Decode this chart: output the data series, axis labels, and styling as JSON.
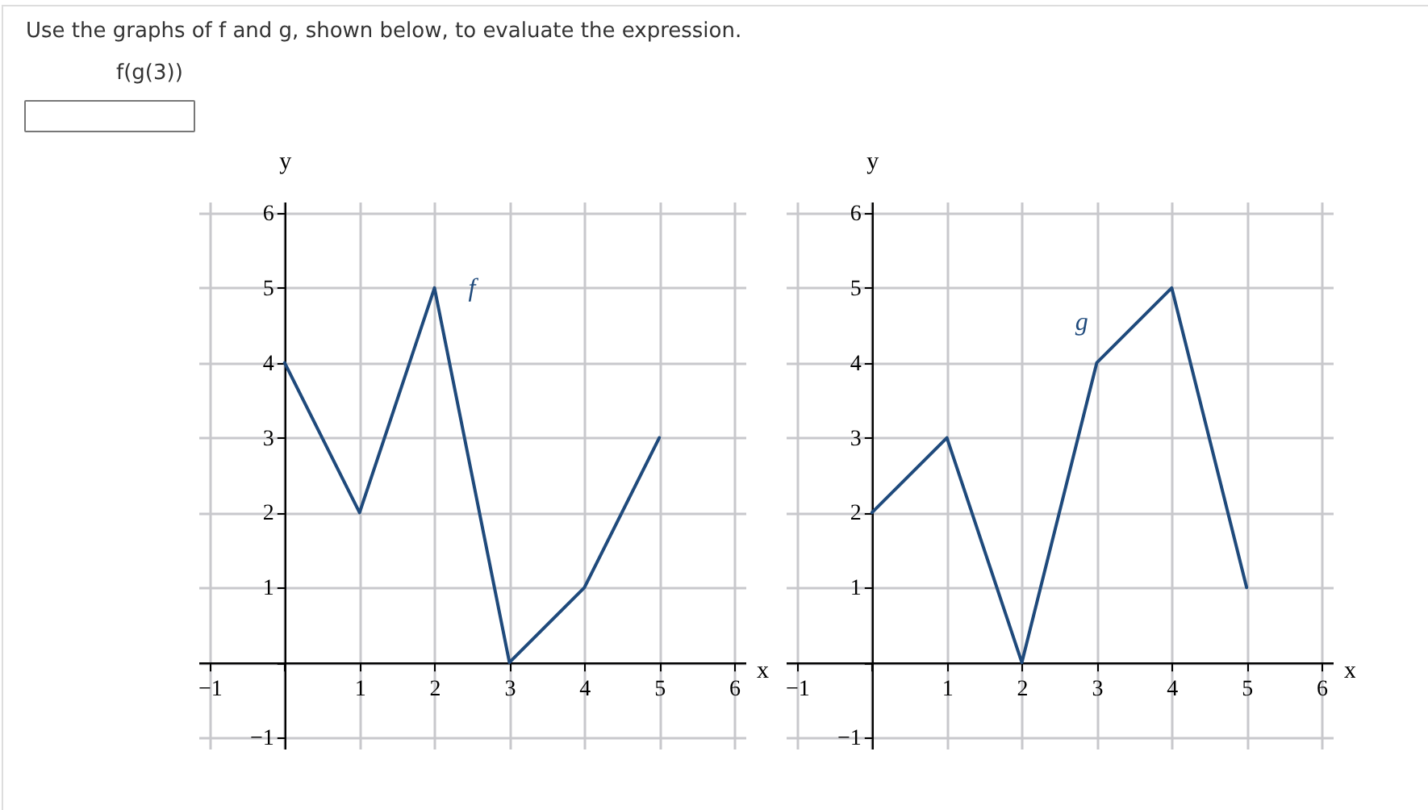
{
  "chart_data": [
    {
      "type": "line",
      "title": "Use the graphs of f and g, shown below, to evaluate the expression.",
      "annotations": [
        "f(g(3))"
      ],
      "xlabel": "x",
      "ylabel": "y",
      "x": [
        0,
        1,
        2,
        3,
        4,
        5
      ],
      "series": [
        {
          "name": "f",
          "color": "#1f4a7c",
          "values": [
            4,
            2,
            5,
            0,
            1,
            3
          ]
        }
      ],
      "xlim": [
        -1.15,
        6.15
      ],
      "ylim": [
        -1.15,
        6.15
      ],
      "xticks": [
        -1,
        {
          "value": 0,
          "label": null
        },
        1,
        2,
        3,
        4,
        5,
        6
      ],
      "yticks": [
        -1,
        {
          "value": 0,
          "label": null
        },
        1,
        2,
        3,
        4,
        5,
        6
      ],
      "grid": true,
      "legend": false,
      "marker": "none",
      "line_style": "solid"
    },
    {
      "type": "line",
      "xlabel": "x",
      "ylabel": "y",
      "x": [
        0,
        1,
        2,
        3,
        4,
        5
      ],
      "series": [
        {
          "name": "g",
          "color": "#1f4a7c",
          "values": [
            2,
            3,
            0,
            4,
            5,
            1
          ]
        }
      ],
      "xlim": [
        -1.15,
        6.15
      ],
      "ylim": [
        -1.15,
        6.15
      ],
      "xticks": [
        -1,
        {
          "value": 0,
          "label": null
        },
        1,
        2,
        3,
        4,
        5,
        6
      ],
      "yticks": [
        -1,
        {
          "value": 0,
          "label": null
        },
        1,
        2,
        3,
        4,
        5,
        6
      ],
      "grid": true,
      "legend": false,
      "marker": "none",
      "line_style": "solid"
    }
  ]
}
